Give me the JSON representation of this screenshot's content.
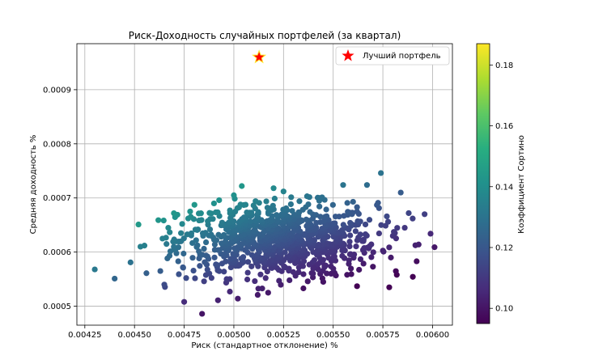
{
  "chart_data": {
    "type": "scatter",
    "title": "Риск-Доходность случайных портфелей (за квартал)",
    "xlabel": "Риск (стандартное отклонение) %",
    "ylabel": "Средняя доходность %",
    "xlim": [
      0.00421,
      0.0061
    ],
    "ylim": [
      0.000465,
      0.000985
    ],
    "x_ticks": [
      0.00425,
      0.0045,
      0.00475,
      0.005,
      0.00525,
      0.0055,
      0.00575,
      0.006
    ],
    "x_tick_labels": [
      "0.00425",
      "0.00450",
      "0.00475",
      "0.00500",
      "0.00525",
      "0.00550",
      "0.00575",
      "0.00600"
    ],
    "y_ticks": [
      0.0005,
      0.0006,
      0.0007,
      0.0008,
      0.0009
    ],
    "y_tick_labels": [
      "0.0005",
      "0.0006",
      "0.0007",
      "0.0008",
      "0.0009"
    ],
    "grid": true,
    "legend": {
      "placement": "top-right",
      "entries": [
        "Лучший портфель"
      ]
    },
    "colorbar": {
      "label": "Коэффициент Сортино",
      "range": [
        0.095,
        0.187
      ],
      "ticks": [
        0.1,
        0.12,
        0.14,
        0.16,
        0.18
      ],
      "tick_labels": [
        "0.10",
        "0.12",
        "0.14",
        "0.16",
        "0.18"
      ],
      "colormap": "viridis"
    },
    "best_portfolio": {
      "x": 0.005127,
      "y": 0.00096,
      "marker": "star",
      "color": "#ff0000"
    },
    "series": [
      {
        "points": [
          [
            0.0043,
            0.000568
          ],
          [
            0.0044,
            0.000551
          ],
          [
            0.00448,
            0.000581
          ],
          [
            0.00452,
            0.000651
          ],
          [
            0.00453,
            0.00061
          ],
          [
            0.00455,
            0.000612
          ],
          [
            0.00456,
            0.000561
          ],
          [
            0.00462,
            0.000659
          ],
          [
            0.00463,
            0.000565
          ],
          [
            0.00465,
            0.00054
          ],
          [
            0.00467,
            0.000645
          ],
          [
            0.0047,
            0.000607
          ],
          [
            0.00472,
            0.000583
          ],
          [
            0.00474,
            0.000652
          ],
          [
            0.00475,
            0.000508
          ],
          [
            0.00476,
            0.000552
          ],
          [
            0.00478,
            0.000675
          ],
          [
            0.00481,
            0.000622
          ],
          [
            0.00484,
            0.000486
          ],
          [
            0.00485,
            0.000546
          ],
          [
            0.00488,
            0.000642
          ],
          [
            0.0049,
            0.00069
          ],
          [
            0.00492,
            0.000511
          ],
          [
            0.00495,
            0.000595
          ],
          [
            0.00498,
            0.000527
          ],
          [
            0.005,
            0.000705
          ],
          [
            0.00502,
            0.000514
          ],
          [
            0.00504,
            0.000722
          ],
          [
            0.00507,
            0.000562
          ],
          [
            0.0051,
            0.000618
          ],
          [
            0.00512,
            0.000521
          ],
          [
            0.00514,
            0.000587
          ],
          [
            0.00516,
            0.000552
          ],
          [
            0.00518,
            0.000648
          ],
          [
            0.0052,
            0.000718
          ],
          [
            0.00523,
            0.0006
          ],
          [
            0.00525,
            0.000712
          ],
          [
            0.00528,
            0.000548
          ],
          [
            0.0053,
            0.000615
          ],
          [
            0.00533,
            0.000694
          ],
          [
            0.00535,
            0.000533
          ],
          [
            0.00538,
            0.000577
          ],
          [
            0.0054,
            0.000622
          ],
          [
            0.00543,
            0.0007
          ],
          [
            0.00545,
            0.000545
          ],
          [
            0.00548,
            0.00064
          ],
          [
            0.0055,
            0.000585
          ],
          [
            0.00553,
            0.000612
          ],
          [
            0.00555,
            0.000724
          ],
          [
            0.00557,
            0.000558
          ],
          [
            0.0056,
            0.000693
          ],
          [
            0.00562,
            0.000537
          ],
          [
            0.00565,
            0.000604
          ],
          [
            0.00567,
            0.000724
          ],
          [
            0.0057,
            0.000573
          ],
          [
            0.00572,
            0.000687
          ],
          [
            0.00574,
            0.000746
          ],
          [
            0.00577,
            0.000666
          ],
          [
            0.0058,
            0.00063
          ],
          [
            0.00582,
            0.000558
          ],
          [
            0.00584,
            0.00071
          ],
          [
            0.00586,
            0.000645
          ],
          [
            0.00588,
            0.000672
          ],
          [
            0.0059,
            0.000662
          ],
          [
            0.00592,
            0.000583
          ],
          [
            0.00593,
            0.000614
          ],
          [
            0.00596,
            0.00067
          ],
          [
            0.00599,
            0.000634
          ],
          [
            0.00601,
            0.000609
          ]
        ]
      }
    ]
  }
}
